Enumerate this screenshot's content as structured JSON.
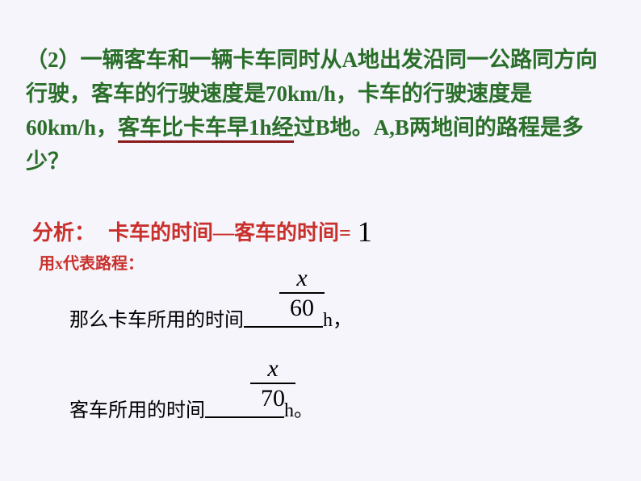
{
  "question": {
    "prefix": "（2）",
    "part1": "一辆客车和一辆卡车同时从A地出发沿同一公路同方向行驶，客车的行驶速度是70km/h，卡车的行驶速度是60km/h，",
    "key": "客车比卡车早1h经",
    "tail": "过B地。A,B两地间的路程是多少？"
  },
  "analysis": {
    "label": "分析：",
    "text": "卡车的时间—客车的时间=",
    "value": "1"
  },
  "subnote": "用x代表路程：",
  "truck_line": {
    "prefix": "那么卡车所用的时间",
    "suffix": "h，"
  },
  "bus_line": {
    "prefix": "客车所用的时间",
    "suffix": "h。"
  },
  "frac1": {
    "num": "x",
    "den": "60"
  },
  "frac2": {
    "num": "x",
    "den": "70"
  },
  "colors": {
    "text_green": "#2a6e2a",
    "text_red": "#c9302c",
    "underline_red": "#8b1a1a",
    "background": "#f5f5fb",
    "black": "#000000"
  }
}
